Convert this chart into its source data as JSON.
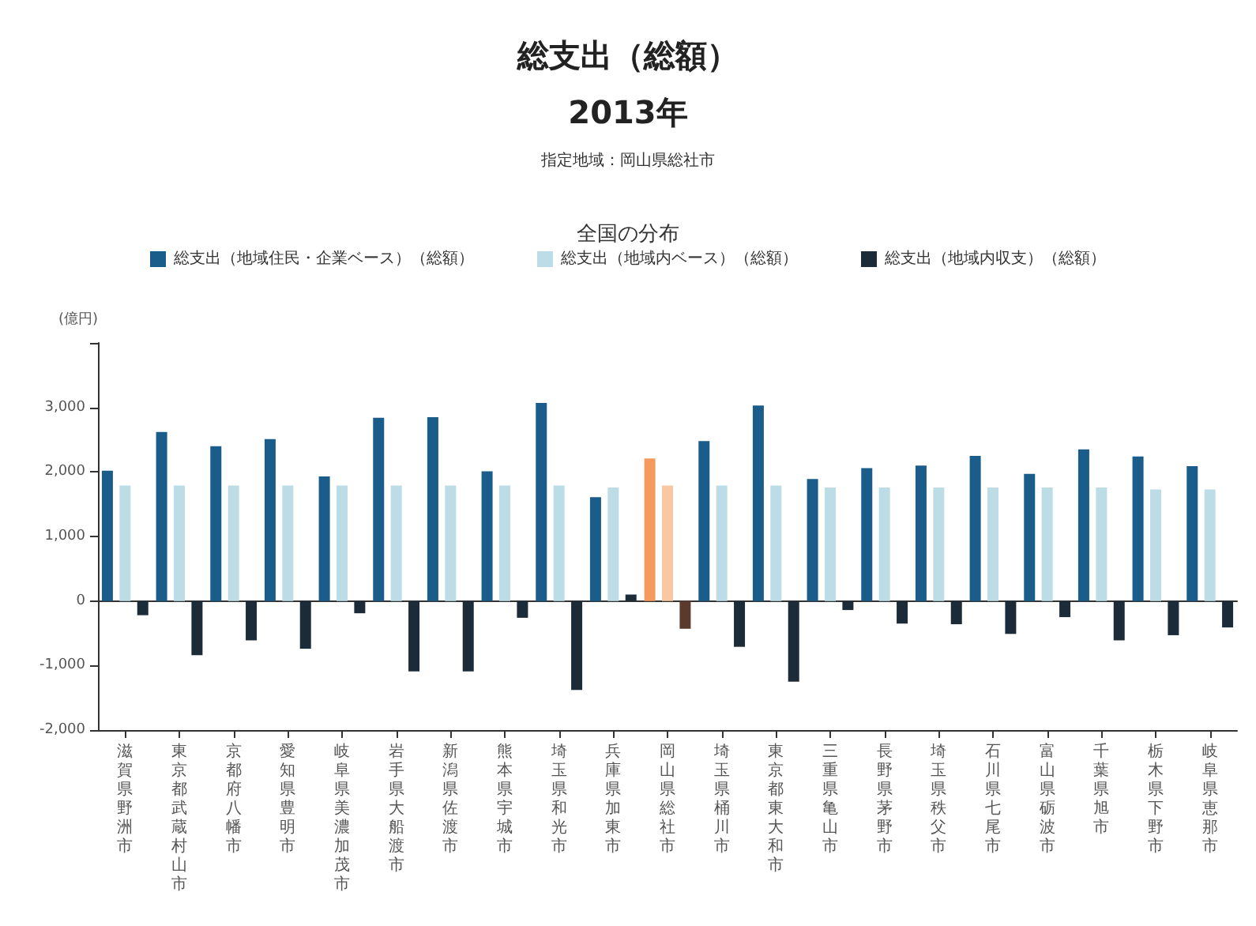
{
  "chart_data": {
    "type": "bar",
    "title": "総支出（総額）\n2013年",
    "subtitle": "指定地域：岡山県総社市",
    "legend_title": "全国の分布",
    "ylabel": "(億円)",
    "categories": [
      "滋賀県野洲市",
      "東京都武蔵村山市",
      "京都府八幡市",
      "愛知県豊明市",
      "岐阜県美濃加茂市",
      "岩手県大船渡市",
      "新潟県佐渡市",
      "熊本県宇城市",
      "埼玉県和光市",
      "兵庫県加東市",
      "岡山県総社市",
      "埼玉県桶川市",
      "東京都東大和市",
      "三重県亀山市",
      "長野県茅野市",
      "埼玉県秩父市",
      "石川県七尾市",
      "富山県砺波市",
      "千葉県旭市",
      "栃木県下野市",
      "岐阜県恵那市"
    ],
    "series": [
      {
        "name": "総支出（地域住民・企業ベース）（総額）",
        "color": "#1a5c8a",
        "colors": [
          "#1a5c8a",
          "#1a5c8a",
          "#1a5c8a",
          "#1a5c8a",
          "#1a5c8a",
          "#1a5c8a",
          "#1a5c8a",
          "#1a5c8a",
          "#1a5c8a",
          "#1a5c8a",
          "#f39a5c",
          "#1a5c8a",
          "#1a5c8a",
          "#1a5c8a",
          "#1a5c8a",
          "#1a5c8a",
          "#1a5c8a",
          "#1a5c8a",
          "#1a5c8a",
          "#1a5c8a",
          "#1a5c8a"
        ],
        "values": [
          2020,
          2620,
          2400,
          2510,
          1930,
          2840,
          2850,
          2010,
          3070,
          1610,
          2210,
          2480,
          3030,
          1890,
          2060,
          2100,
          2250,
          1970,
          2350,
          2240,
          2090
        ]
      },
      {
        "name": "総支出（地域内ベース）（総額）",
        "color": "#bcdde6",
        "colors": [
          "#bcdde6",
          "#bcdde6",
          "#bcdde6",
          "#bcdde6",
          "#bcdde6",
          "#bcdde6",
          "#bcdde6",
          "#bcdde6",
          "#bcdde6",
          "#bcdde6",
          "#f8c9a0",
          "#bcdde6",
          "#bcdde6",
          "#bcdde6",
          "#bcdde6",
          "#bcdde6",
          "#bcdde6",
          "#bcdde6",
          "#bcdde6",
          "#bcdde6",
          "#bcdde6"
        ],
        "values": [
          1790,
          1790,
          1790,
          1790,
          1790,
          1790,
          1790,
          1790,
          1790,
          1760,
          1790,
          1790,
          1790,
          1760,
          1760,
          1760,
          1760,
          1760,
          1760,
          1730,
          1730
        ]
      },
      {
        "name": "総支出（地域内収支）（総額）",
        "color": "#1c2b38",
        "colors": [
          "#1c2b38",
          "#1c2b38",
          "#1c2b38",
          "#1c2b38",
          "#1c2b38",
          "#1c2b38",
          "#1c2b38",
          "#1c2b38",
          "#1c2b38",
          "#1c2b38",
          "#5a3a2a",
          "#1c2b38",
          "#1c2b38",
          "#1c2b38",
          "#1c2b38",
          "#1c2b38",
          "#1c2b38",
          "#1c2b38",
          "#1c2b38",
          "#1c2b38",
          "#1c2b38"
        ],
        "values": [
          -220,
          -840,
          -610,
          -740,
          -190,
          -1090,
          -1090,
          -260,
          -1380,
          100,
          -430,
          -710,
          -1250,
          -140,
          -350,
          -360,
          -510,
          -250,
          -610,
          -530,
          -410
        ]
      }
    ],
    "ylim": [
      -2000,
      4000
    ],
    "yticks": [
      {
        "value": -2000,
        "label": "-2,000"
      },
      {
        "value": -1000,
        "label": "-1,000"
      },
      0,
      {
        "value": 1000,
        "label": "1,000"
      },
      {
        "value": 2000,
        "label": "2,000"
      },
      {
        "value": 3000,
        "label": "3,000"
      },
      {
        "value": 4000,
        "label": null
      }
    ],
    "legend": "top"
  }
}
